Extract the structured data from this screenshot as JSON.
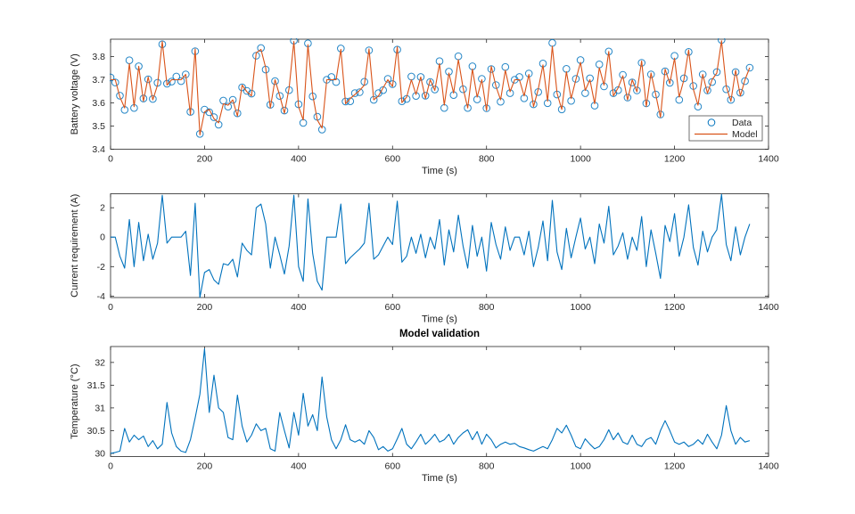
{
  "figure": {
    "background": "#ffffff",
    "axis_color": "#262626",
    "accent_blue": "#0072BD",
    "accent_orange": "#D95319"
  },
  "chart_data": [
    {
      "id": "battery-voltage",
      "type": "scatter",
      "title": "",
      "xlabel": "Time (s)",
      "ylabel": "Battery voltage (V)",
      "xlim": [
        0,
        1400
      ],
      "ylim": [
        3.4,
        3.875
      ],
      "grid": "off",
      "xticks": [
        0,
        200,
        400,
        600,
        800,
        1000,
        1200,
        1400
      ],
      "xtick_labels": [
        "0",
        "200",
        "400",
        "600",
        "800",
        "1000",
        "1200",
        "1400"
      ],
      "yticks": [
        3.4,
        3.5,
        3.6,
        3.7,
        3.8
      ],
      "ytick_labels": [
        "3.4",
        "3.5",
        "3.6",
        "3.7",
        "3.8"
      ],
      "x_start": 0,
      "x_step": 10,
      "legend": {
        "position": "southeast",
        "entries": [
          {
            "label": "Data",
            "marker": "circle",
            "color": "#0072BD"
          },
          {
            "label": "Model",
            "marker": "line",
            "color": "#D95319"
          }
        ]
      },
      "series": [
        {
          "name": "Data",
          "style": "scatter",
          "color": "#0072BD",
          "values": [
            3.71,
            3.688,
            3.631,
            3.57,
            3.784,
            3.578,
            3.758,
            3.619,
            3.702,
            3.617,
            3.687,
            3.853,
            3.683,
            3.692,
            3.714,
            3.694,
            3.723,
            3.561,
            3.823,
            3.466,
            3.571,
            3.56,
            3.538,
            3.506,
            3.61,
            3.584,
            3.613,
            3.555,
            3.667,
            3.652,
            3.64,
            3.804,
            3.837,
            3.744,
            3.592,
            3.694,
            3.63,
            3.567,
            3.655,
            3.869,
            3.594,
            3.514,
            3.857,
            3.628,
            3.54,
            3.485,
            3.7,
            3.712,
            3.69,
            3.835,
            3.606,
            3.607,
            3.642,
            3.646,
            3.691,
            3.827,
            3.613,
            3.642,
            3.655,
            3.704,
            3.681,
            3.83,
            3.607,
            3.617,
            3.714,
            3.63,
            3.712,
            3.631,
            3.69,
            3.658,
            3.78,
            3.578,
            3.735,
            3.634,
            3.801,
            3.659,
            3.578,
            3.758,
            3.615,
            3.704,
            3.577,
            3.746,
            3.677,
            3.605,
            3.755,
            3.642,
            3.7,
            3.712,
            3.62,
            3.727,
            3.594,
            3.647,
            3.77,
            3.599,
            3.859,
            3.636,
            3.572,
            3.747,
            3.609,
            3.704,
            3.785,
            3.642,
            3.706,
            3.588,
            3.766,
            3.671,
            3.822,
            3.642,
            3.655,
            3.721,
            3.623,
            3.688,
            3.654,
            3.773,
            3.598,
            3.723,
            3.636,
            3.55,
            3.736,
            3.687,
            3.803,
            3.613,
            3.706,
            3.82,
            3.673,
            3.584,
            3.723,
            3.654,
            3.69,
            3.733,
            3.872,
            3.659,
            3.613,
            3.733,
            3.644,
            3.694,
            3.752
          ]
        },
        {
          "name": "Model",
          "style": "line",
          "color": "#D95319",
          "values": [
            3.7,
            3.7,
            3.625,
            3.578,
            3.77,
            3.584,
            3.758,
            3.607,
            3.712,
            3.613,
            3.677,
            3.865,
            3.677,
            3.7,
            3.7,
            3.7,
            3.723,
            3.549,
            3.833,
            3.462,
            3.561,
            3.572,
            3.532,
            3.514,
            3.596,
            3.59,
            3.613,
            3.543,
            3.677,
            3.648,
            3.63,
            3.816,
            3.831,
            3.752,
            3.578,
            3.7,
            3.63,
            3.555,
            3.665,
            3.865,
            3.584,
            3.526,
            3.851,
            3.636,
            3.526,
            3.491,
            3.7,
            3.7,
            3.7,
            3.831,
            3.596,
            3.619,
            3.636,
            3.654,
            3.677,
            3.833,
            3.613,
            3.63,
            3.665,
            3.7,
            3.671,
            3.842,
            3.601,
            3.625,
            3.7,
            3.636,
            3.712,
            3.619,
            3.7,
            3.654,
            3.77,
            3.59,
            3.729,
            3.642,
            3.787,
            3.665,
            3.578,
            3.746,
            3.625,
            3.7,
            3.567,
            3.758,
            3.671,
            3.613,
            3.741,
            3.648,
            3.7,
            3.7,
            3.63,
            3.723,
            3.584,
            3.659,
            3.764,
            3.607,
            3.845,
            3.642,
            3.572,
            3.735,
            3.619,
            3.7,
            3.775,
            3.654,
            3.7,
            3.596,
            3.752,
            3.677,
            3.822,
            3.63,
            3.665,
            3.717,
            3.613,
            3.7,
            3.648,
            3.781,
            3.584,
            3.729,
            3.636,
            3.538,
            3.746,
            3.683,
            3.793,
            3.625,
            3.7,
            3.828,
            3.659,
            3.59,
            3.723,
            3.642,
            3.7,
            3.729,
            3.868,
            3.671,
            3.607,
            3.741,
            3.63,
            3.7,
            3.752
          ]
        }
      ]
    },
    {
      "id": "current-requirement",
      "type": "line",
      "title": "",
      "xlabel": "Time (s)",
      "ylabel": "Current requirement (A)",
      "xlim": [
        0,
        1400
      ],
      "ylim": [
        -4.1,
        2.95
      ],
      "grid": "off",
      "xticks": [
        0,
        200,
        400,
        600,
        800,
        1000,
        1200,
        1400
      ],
      "xtick_labels": [
        "0",
        "200",
        "400",
        "600",
        "800",
        "1000",
        "1200",
        "1400"
      ],
      "yticks": [
        -4,
        -2,
        0,
        2
      ],
      "ytick_labels": [
        "-4",
        "-2",
        "0",
        "2"
      ],
      "x_start": 0,
      "x_step": 10,
      "series": [
        {
          "name": "Current",
          "style": "line",
          "color": "#0072BD",
          "values": [
            0,
            0,
            -1.3,
            -2.1,
            1.2,
            -2.0,
            1.0,
            -1.6,
            0.2,
            -1.5,
            -0.4,
            2.85,
            -0.4,
            0,
            0,
            0,
            0.4,
            -2.6,
            2.3,
            -4.1,
            -2.4,
            -2.2,
            -2.9,
            -3.2,
            -1.8,
            -1.9,
            -1.5,
            -2.7,
            -0.4,
            -0.9,
            -1.2,
            2.0,
            2.25,
            0.9,
            -2.1,
            0,
            -1.2,
            -2.5,
            -0.6,
            2.85,
            -2.0,
            -3.0,
            2.6,
            -1.1,
            -3.0,
            -3.6,
            0,
            0,
            0,
            2.25,
            -1.8,
            -1.4,
            -1.1,
            -0.8,
            -0.4,
            2.3,
            -1.5,
            -1.2,
            -0.6,
            0,
            -0.5,
            2.45,
            -1.7,
            -1.3,
            0,
            -1.1,
            0.2,
            -1.4,
            0,
            -0.8,
            1.2,
            -1.9,
            0.5,
            -1.0,
            1.5,
            -0.6,
            -2.1,
            0.8,
            -1.3,
            0,
            -2.3,
            1.0,
            -0.5,
            -1.5,
            0.7,
            -0.9,
            0,
            0,
            -1.2,
            0.4,
            -2.0,
            -0.7,
            1.1,
            -1.6,
            2.5,
            -1.0,
            -2.2,
            0.6,
            -1.4,
            0,
            1.3,
            -0.8,
            0,
            -1.8,
            0.9,
            -0.4,
            2.1,
            -1.2,
            -0.6,
            0.3,
            -1.5,
            0,
            -0.9,
            1.4,
            -2.0,
            0.5,
            -1.1,
            -2.8,
            0.8,
            -0.3,
            1.6,
            -1.3,
            0,
            2.2,
            -0.7,
            -1.9,
            0.4,
            -1.0,
            0,
            0.5,
            2.9,
            -0.5,
            -1.6,
            0.7,
            -1.2,
            0,
            0.9
          ]
        }
      ]
    },
    {
      "id": "temperature",
      "type": "line",
      "title": "Model validation",
      "xlabel": "Time (s)",
      "ylabel": "Temperature  (°C)",
      "xlim": [
        0,
        1400
      ],
      "ylim": [
        29.93,
        32.35
      ],
      "grid": "off",
      "xticks": [
        0,
        200,
        400,
        600,
        800,
        1000,
        1200,
        1400
      ],
      "xtick_labels": [
        "0",
        "200",
        "400",
        "600",
        "800",
        "1000",
        "1200",
        "1400"
      ],
      "yticks": [
        30,
        30.5,
        31,
        31.5,
        32
      ],
      "ytick_labels": [
        "30",
        "30.5",
        "31",
        "31.5",
        "32"
      ],
      "x_start": 0,
      "x_step": 10,
      "series": [
        {
          "name": "Temperature",
          "style": "line",
          "color": "#0072BD",
          "values": [
            30.0,
            30.02,
            30.05,
            30.55,
            30.25,
            30.4,
            30.3,
            30.38,
            30.15,
            30.28,
            30.1,
            30.2,
            31.12,
            30.45,
            30.15,
            30.05,
            30.02,
            30.3,
            30.78,
            31.3,
            32.3,
            30.9,
            31.72,
            31.0,
            30.9,
            30.35,
            30.3,
            31.28,
            30.6,
            30.25,
            30.4,
            30.65,
            30.5,
            30.55,
            30.1,
            30.05,
            30.9,
            30.5,
            30.12,
            30.9,
            30.4,
            31.32,
            30.6,
            30.85,
            30.5,
            31.68,
            30.8,
            30.3,
            30.1,
            30.3,
            30.63,
            30.3,
            30.25,
            30.3,
            30.2,
            30.5,
            30.35,
            30.08,
            30.15,
            30.05,
            30.1,
            30.32,
            30.55,
            30.2,
            30.1,
            30.25,
            30.42,
            30.2,
            30.3,
            30.42,
            30.25,
            30.3,
            30.42,
            30.2,
            30.35,
            30.45,
            30.52,
            30.3,
            30.48,
            30.2,
            30.42,
            30.3,
            30.12,
            30.2,
            30.25,
            30.2,
            30.22,
            30.15,
            30.12,
            30.08,
            30.05,
            30.1,
            30.15,
            30.1,
            30.3,
            30.55,
            30.45,
            30.62,
            30.4,
            30.15,
            30.1,
            30.32,
            30.2,
            30.1,
            30.15,
            30.3,
            30.52,
            30.3,
            30.45,
            30.25,
            30.2,
            30.4,
            30.2,
            30.15,
            30.3,
            30.35,
            30.2,
            30.5,
            30.72,
            30.5,
            30.25,
            30.2,
            30.25,
            30.15,
            30.2,
            30.3,
            30.2,
            30.42,
            30.25,
            30.1,
            30.4,
            31.05,
            30.5,
            30.2,
            30.35,
            30.25,
            30.28
          ]
        }
      ]
    }
  ]
}
